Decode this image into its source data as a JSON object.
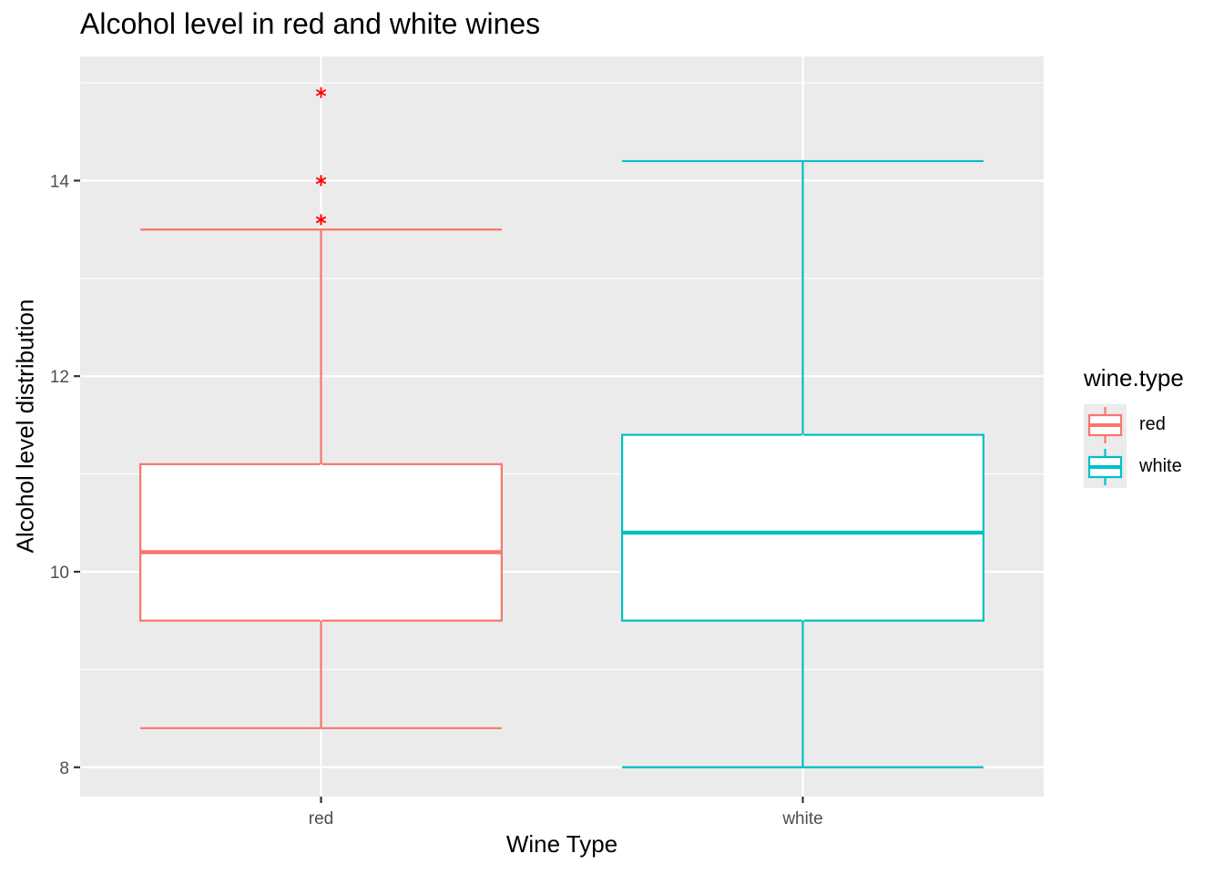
{
  "chart_data": {
    "type": "boxplot",
    "title": "Alcohol level in red and white wines",
    "xlabel": "Wine Type",
    "ylabel": "Alcohol level distribution",
    "categories": [
      "red",
      "white"
    ],
    "ylim": [
      7.7,
      15.27
    ],
    "y_ticks": [
      8,
      10,
      12,
      14
    ],
    "grid": true,
    "legend": {
      "title": "wine.type",
      "position": "right",
      "entries": [
        {
          "label": "red",
          "color": "#f8766d"
        },
        {
          "label": "white",
          "color": "#00bfc4"
        }
      ]
    },
    "boxes": [
      {
        "category": "red",
        "color": "#f8766d",
        "min": 8.4,
        "q1": 9.5,
        "median": 10.2,
        "q3": 11.1,
        "max": 13.5,
        "outliers": [
          13.6,
          13.6,
          14.0,
          14.0,
          14.9
        ],
        "outlier_color": "#ff0000"
      },
      {
        "category": "white",
        "color": "#00bfc4",
        "min": 8.0,
        "q1": 9.5,
        "median": 10.4,
        "q3": 11.4,
        "max": 14.2,
        "outliers": [],
        "outlier_color": "#ff0000"
      }
    ],
    "colors": {
      "panel": "#ebebeb",
      "grid": "#ffffff",
      "box_fill": "#ffffff",
      "axis_text": "#4d4d4d"
    }
  }
}
